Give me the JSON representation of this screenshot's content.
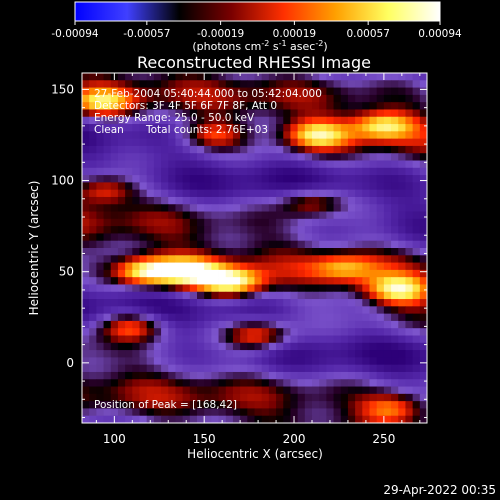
{
  "colorbar": {
    "tick_labels": [
      "-0.00094",
      "-0.00057",
      "-0.00019",
      "0.00019",
      "0.00057",
      "0.00094"
    ],
    "units_text": "(photons cm",
    "units_sup1": "-2",
    "units_mid": " s",
    "units_sup2": "-1",
    "units_mid2": " asec",
    "units_sup3": "-2",
    "units_end": ")",
    "colors": [
      "#0000ff",
      "#4040ff",
      "#000000",
      "#7a0000",
      "#ff3000",
      "#ffa000",
      "#ffff60",
      "#ffffff"
    ]
  },
  "chart_data": {
    "type": "heatmap",
    "title": "Reconstructed RHESSI Image",
    "xlabel": "Heliocentric X (arcsec)",
    "ylabel": "Heliocentric Y (arcsec)",
    "xlim": [
      82,
      274
    ],
    "ylim": [
      -33,
      159
    ],
    "xticks": [
      100,
      150,
      200,
      250
    ],
    "yticks": [
      0,
      50,
      100,
      150
    ],
    "value_range": [
      -0.00094,
      0.00094
    ],
    "annotations": {
      "time_range": "27-Feb-2004 05:40:44.000 to 05:42:04.000",
      "detectors": "Detectors: 3F 4F 5F 6F 7F 8F, Att 0",
      "energy": "Energy Range: 25.0 - 50.0 keV",
      "clean_label": "Clean",
      "total_counts": "Total counts: 2.76E+03",
      "peak": "Position of Peak = [168,42]"
    },
    "bright_sources": [
      {
        "x": 165,
        "y": 44,
        "intensity": 1.0
      },
      {
        "x": 118,
        "y": 50,
        "intensity": 0.95
      },
      {
        "x": 142,
        "y": 50,
        "intensity": 0.85
      },
      {
        "x": 258,
        "y": 40,
        "intensity": 0.85
      },
      {
        "x": 213,
        "y": 125,
        "intensity": 0.8
      },
      {
        "x": 250,
        "y": 130,
        "intensity": 0.8
      },
      {
        "x": 93,
        "y": 143,
        "intensity": 0.7
      },
      {
        "x": 155,
        "y": 125,
        "intensity": 0.55
      },
      {
        "x": 110,
        "y": 20,
        "intensity": 0.65
      },
      {
        "x": 180,
        "y": 15,
        "intensity": 0.7
      },
      {
        "x": 228,
        "y": 52,
        "intensity": 0.5
      },
      {
        "x": 95,
        "y": 95,
        "intensity": 0.6
      },
      {
        "x": 210,
        "y": 88,
        "intensity": 0.55
      },
      {
        "x": 255,
        "y": -25,
        "intensity": 0.6
      }
    ]
  },
  "footer": {
    "timestamp": "29-Apr-2022 00:35"
  }
}
